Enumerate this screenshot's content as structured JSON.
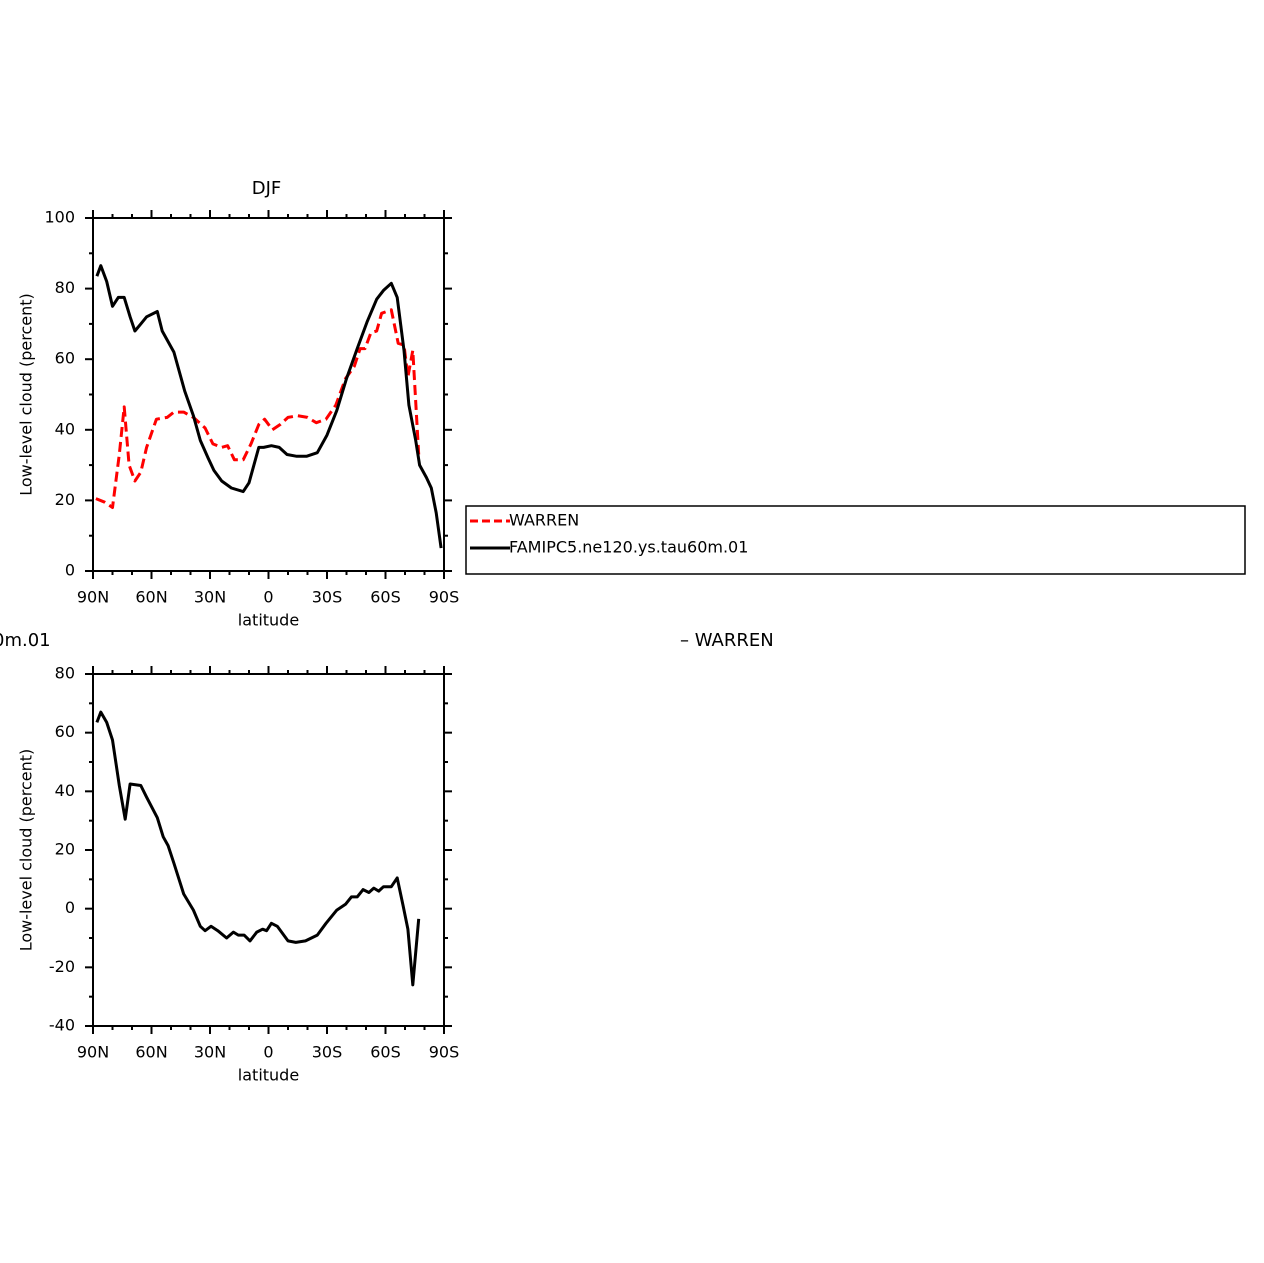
{
  "chart_data": [
    {
      "type": "line",
      "title": "DJF",
      "xlabel": "latitude",
      "ylabel": "Low-level cloud (percent)",
      "xlim": [
        90,
        -90
      ],
      "xticks": [
        {
          "value": 90,
          "label": "90N"
        },
        {
          "value": 60,
          "label": "60N"
        },
        {
          "value": 30,
          "label": "30N"
        },
        0,
        {
          "value": -30,
          "label": "30S"
        },
        {
          "value": -60,
          "label": "60S"
        },
        {
          "value": -90,
          "label": "90S"
        }
      ],
      "xminorticks": [
        80,
        70,
        50,
        40,
        20,
        10,
        -10,
        -20,
        -40,
        -50,
        -70,
        -80
      ],
      "ylim": [
        0,
        100
      ],
      "yticks": [
        0,
        20,
        40,
        60,
        80,
        100
      ],
      "yminorticks": [
        10,
        30,
        50,
        70,
        90
      ],
      "legend": "right",
      "series": [
        {
          "name": "WARREN",
          "color": "#ff0000",
          "linestyle": "dashed",
          "x": [
            88.5,
            84,
            80,
            76.5,
            74,
            71.5,
            68.5,
            65.5,
            62.5,
            57.5,
            52,
            48.5,
            43.5,
            38.5,
            32.5,
            28.5,
            24,
            21,
            17.5,
            13,
            9,
            5,
            2,
            -2,
            -6,
            -10,
            -15,
            -20,
            -24.5,
            -29.5,
            -34.5,
            -39.5,
            -44,
            -47,
            -49.5,
            -52.5,
            -55.5,
            -58,
            -63,
            -66.5,
            -69.5,
            -71.5,
            -74,
            -77
          ],
          "values": [
            20.5,
            19.5,
            18,
            33,
            46.5,
            30,
            25.5,
            28,
            35,
            43,
            43.5,
            45,
            45,
            43.5,
            40.5,
            36,
            35,
            35.5,
            31.5,
            31.5,
            36,
            41.5,
            43,
            40,
            41.5,
            43.5,
            44,
            43.5,
            42,
            43,
            47,
            54.5,
            58,
            63,
            63,
            67.5,
            68,
            73,
            74,
            64.5,
            64,
            55,
            62.5,
            33
          ]
        },
        {
          "name": "FAMIPC5.ne120.ys.tau60m.01",
          "color": "#000000",
          "linestyle": "solid",
          "x": [
            88,
            86,
            83,
            80,
            77,
            74,
            71,
            68.5,
            65.5,
            62.5,
            57,
            54.5,
            48.5,
            43,
            38.5,
            35,
            31,
            28,
            24,
            19,
            13,
            10,
            5,
            2.5,
            -1.5,
            -5.5,
            -9.5,
            -14.5,
            -19.5,
            -25,
            -30,
            -35,
            -40,
            -45.5,
            -50.5,
            -55.5,
            -59,
            -63,
            -66,
            -69.5,
            -72,
            -75.5,
            -77.5,
            -81,
            -83.5,
            -86,
            -88.5
          ],
          "values": [
            83.5,
            86.5,
            82,
            75,
            77.5,
            77.5,
            72,
            68,
            70,
            72,
            73.5,
            68,
            62,
            51,
            44,
            37,
            32,
            28.5,
            25.5,
            23.5,
            22.5,
            25,
            35,
            35,
            35.5,
            35,
            33,
            32.5,
            32.5,
            33.5,
            38.5,
            45.5,
            54.5,
            63,
            70.5,
            77,
            79.5,
            81.5,
            77.5,
            62.5,
            47,
            37,
            30,
            26.5,
            23.5,
            16.5,
            6.5
          ]
        }
      ]
    },
    {
      "type": "line",
      "title_fragments": [
        "0m.01",
        "– WARREN"
      ],
      "xlabel": "latitude",
      "ylabel": "Low-level cloud (percent)",
      "xlim": [
        90,
        -90
      ],
      "xticks": [
        {
          "value": 90,
          "label": "90N"
        },
        {
          "value": 60,
          "label": "60N"
        },
        {
          "value": 30,
          "label": "30N"
        },
        0,
        {
          "value": -30,
          "label": "30S"
        },
        {
          "value": -60,
          "label": "60S"
        },
        {
          "value": -90,
          "label": "90S"
        }
      ],
      "xminorticks": [
        80,
        70,
        50,
        40,
        20,
        10,
        -10,
        -20,
        -40,
        -50,
        -70,
        -80
      ],
      "ylim": [
        -40,
        80
      ],
      "yticks": [
        -40,
        -20,
        0,
        20,
        40,
        60,
        80
      ],
      "yminorticks": [
        -30,
        -10,
        10,
        30,
        50,
        70
      ],
      "color": "#000000",
      "x": [
        88,
        86,
        83,
        80,
        76.5,
        73.5,
        71,
        65.5,
        62.5,
        57,
        54,
        51.5,
        48.5,
        43.5,
        38.5,
        35,
        32.5,
        29.5,
        26,
        21.5,
        18,
        15.5,
        12.5,
        9.5,
        6,
        3,
        1,
        -1.5,
        -4.5,
        -10,
        -14,
        -19,
        -25,
        -29.5,
        -35,
        -39.5,
        -42.5,
        -45.5,
        -48.5,
        -51.5,
        -54,
        -56.5,
        -59,
        -63,
        -66,
        -69,
        -71.5,
        -74,
        -77
      ],
      "values": [
        63.5,
        67,
        63.5,
        57.5,
        42,
        30.5,
        42.5,
        42,
        38,
        31,
        24.5,
        21.5,
        15.5,
        5,
        -0.5,
        -6,
        -7.5,
        -6,
        -7.5,
        -10,
        -8,
        -9,
        -9,
        -11,
        -8,
        -7,
        -7.5,
        -5,
        -6,
        -11,
        -11.5,
        -11,
        -9,
        -5,
        -0.5,
        1.5,
        4,
        4,
        6.5,
        5.5,
        7,
        6,
        7.5,
        7.5,
        10.5,
        1,
        -7,
        -26,
        -3.5
      ]
    }
  ]
}
